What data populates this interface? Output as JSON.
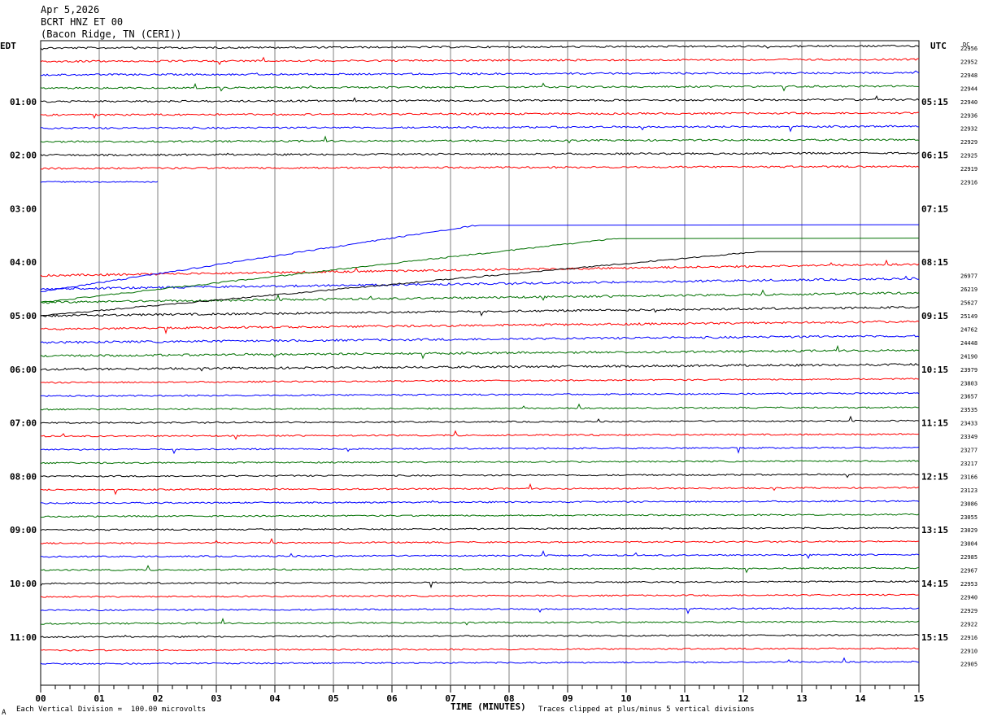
{
  "header": {
    "date": "Apr 5,2026",
    "station": "BCRT HNZ ET 00",
    "location": "(Bacon Ridge, TN (CERI))"
  },
  "footer": {
    "scale_note": "Each Vertical Division =  100.00 microvolts",
    "clip_note": "Traces clipped at plus/minus 5 vertical divisions",
    "corner_mark": "A"
  },
  "chart_data": {
    "type": "line",
    "title": "",
    "left_timezone": "EDT",
    "right_timezone": "UTC",
    "dc_label": "DC",
    "xlabel": "TIME (MINUTES)",
    "x_ticks": [
      "00",
      "01",
      "02",
      "03",
      "04",
      "05",
      "06",
      "07",
      "08",
      "09",
      "10",
      "11",
      "12",
      "13",
      "14",
      "15"
    ],
    "xlim": [
      0,
      15
    ],
    "grid": true,
    "left_hour_labels": [
      "01:00",
      "02:00",
      "03:00",
      "04:00",
      "05:00",
      "06:00",
      "07:00",
      "08:00",
      "09:00",
      "10:00",
      "11:00"
    ],
    "right_hour_labels": [
      "05:15",
      "06:15",
      "07:15",
      "08:15",
      "09:15",
      "10:15",
      "11:15",
      "12:15",
      "13:15",
      "14:15",
      "15:15"
    ],
    "trace_colors": [
      "#000000",
      "#ff0000",
      "#0000ff",
      "#007000"
    ],
    "dc_offsets": [
      "22956",
      "22952",
      "22948",
      "22944",
      "22940",
      "22936",
      "22932",
      "22929",
      "22925",
      "22919",
      "22916",
      "",
      "",
      "",
      "",
      "",
      "",
      "26977",
      "26219",
      "25627",
      "25149",
      "24762",
      "24448",
      "24190",
      "23979",
      "23803",
      "23657",
      "23535",
      "23433",
      "23349",
      "23277",
      "23217",
      "23166",
      "23123",
      "23086",
      "23055",
      "23029",
      "23004",
      "22985",
      "22967",
      "22953",
      "22940",
      "22929",
      "22922",
      "22916",
      "22910",
      "22905"
    ]
  }
}
